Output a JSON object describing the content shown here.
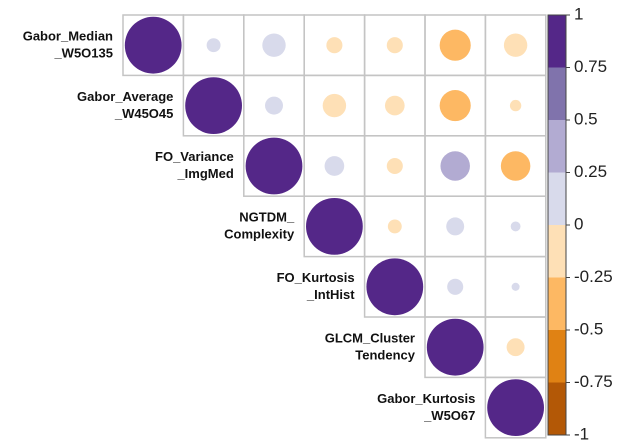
{
  "chart_data": {
    "type": "corrplot",
    "variables": [
      [
        "Gabor_Median",
        "_W5O135"
      ],
      [
        "Gabor_Average",
        "_W45O45"
      ],
      [
        "FO_Variance",
        "_ImgMed"
      ],
      [
        "NGTDM_",
        "Complexity"
      ],
      [
        "FO_Kurtosis",
        "_IntHist"
      ],
      [
        "GLCM_Cluster",
        "Tendency"
      ],
      [
        "Gabor_Kurtosis",
        "_W5O67"
      ]
    ],
    "matrix": [
      [
        1,
        0.06,
        0.17,
        -0.08,
        -0.08,
        -0.3,
        -0.17
      ],
      [
        null,
        1,
        0.1,
        -0.17,
        -0.12,
        -0.3,
        -0.04
      ],
      [
        null,
        null,
        1,
        0.12,
        -0.08,
        0.27,
        -0.27
      ],
      [
        null,
        null,
        null,
        1,
        -0.06,
        0.1,
        0.03
      ],
      [
        null,
        null,
        null,
        null,
        1,
        0.08,
        0.02
      ],
      [
        null,
        null,
        null,
        null,
        null,
        1,
        -0.1
      ],
      [
        null,
        null,
        null,
        null,
        null,
        null,
        1
      ]
    ],
    "colorbar": {
      "lim": [
        -1,
        1
      ],
      "ticks": [
        1,
        0.75,
        0.5,
        0.25,
        0,
        -0.25,
        -0.5,
        -0.75,
        -1
      ],
      "colors": [
        "#b35806",
        "#e08214",
        "#fdb863",
        "#fee0b6",
        "#d8daeb",
        "#b2abd2",
        "#8073ac",
        "#542788"
      ]
    }
  }
}
